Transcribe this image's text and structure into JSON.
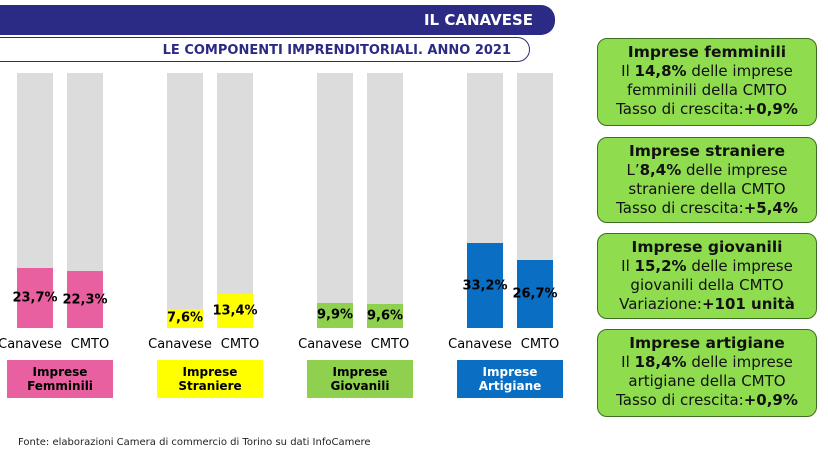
{
  "chart_data": {
    "type": "bar",
    "title": "IL CANAVESE",
    "subtitle": "LE COMPONENTI IMPRENDITORIALI. ANNO 2021",
    "categories": [
      "Canavese",
      "CMTO"
    ],
    "ylim": [
      0,
      100
    ],
    "track_color": "#dcdcdc",
    "groups": [
      {
        "name": "Imprese Femminili",
        "color": "#e8609f",
        "values": [
          23.7,
          22.3
        ],
        "value_labels": [
          "23,7%",
          "22,3%"
        ]
      },
      {
        "name": "Imprese Straniere",
        "color": "#ffff00",
        "values": [
          7.6,
          13.4
        ],
        "value_labels": [
          "7,6%",
          "13,4%"
        ]
      },
      {
        "name": "Imprese Giovanili",
        "color": "#8fd14f",
        "values": [
          9.9,
          9.6
        ],
        "value_labels": [
          "9,9%",
          "9,6%"
        ]
      },
      {
        "name": "Imprese Artigiane",
        "color": "#0a6fc2",
        "values": [
          33.2,
          26.7
        ],
        "value_labels": [
          "33,2%",
          "26,7%"
        ]
      }
    ]
  },
  "info_boxes": [
    {
      "title": "Imprese femminili",
      "lines": [
        [
          {
            "text": "Il "
          },
          {
            "text": "14,8%",
            "bold": true
          },
          {
            "text": " delle imprese femminili della CMTO"
          }
        ],
        [
          {
            "text": "Tasso di crescita:"
          },
          {
            "text": "+0,9%",
            "bold": true
          }
        ]
      ]
    },
    {
      "title": "Imprese straniere",
      "lines": [
        [
          {
            "text": "L’"
          },
          {
            "text": "8,4%",
            "bold": true
          },
          {
            "text": " delle imprese straniere della CMTO"
          }
        ],
        [
          {
            "text": "Tasso di crescita:"
          },
          {
            "text": "+5,4%",
            "bold": true
          }
        ]
      ]
    },
    {
      "title": "Imprese giovanili",
      "lines": [
        [
          {
            "text": "Il "
          },
          {
            "text": "15,2%",
            "bold": true
          },
          {
            "text": " delle imprese giovanili della CMTO"
          }
        ],
        [
          {
            "text": "Variazione:"
          },
          {
            "text": "+101 unità",
            "bold": true
          }
        ]
      ]
    },
    {
      "title": "Imprese artigiane",
      "lines": [
        [
          {
            "text": "Il "
          },
          {
            "text": "18,4%",
            "bold": true
          },
          {
            "text": " delle imprese artigiane della CMTO"
          }
        ],
        [
          {
            "text": "Tasso di crescita:"
          },
          {
            "text": "+0,9%",
            "bold": true
          }
        ]
      ]
    }
  ],
  "footnote": "Fonte: elaborazioni Camera di commercio di Torino su dati InfoCamere"
}
